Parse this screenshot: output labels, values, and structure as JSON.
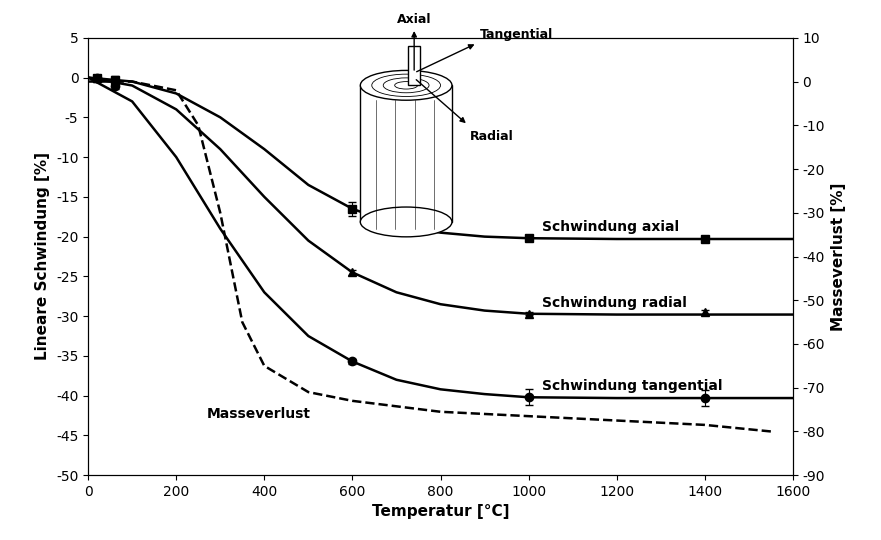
{
  "chart_data": {
    "type": "line",
    "x_label": "Temperatur [°C]",
    "y_label": "Lineare Schwindung [%]",
    "y2_label": "Masseverlust [%]",
    "xlim": [
      0,
      1600
    ],
    "xticks": [
      0,
      200,
      400,
      600,
      800,
      1000,
      1200,
      1400,
      1600
    ],
    "ylim": [
      -50,
      5
    ],
    "yticks": [
      -50,
      -45,
      -40,
      -35,
      -30,
      -25,
      -20,
      -15,
      -10,
      -5,
      0,
      5
    ],
    "y2lim": [
      -90,
      10
    ],
    "y2ticks": [
      -90,
      -80,
      -70,
      -60,
      -50,
      -40,
      -30,
      -20,
      -10,
      0,
      10
    ],
    "grid": false,
    "x": [
      0,
      100,
      200,
      300,
      400,
      500,
      600,
      700,
      800,
      900,
      1000,
      1200,
      1400,
      1600
    ],
    "series": [
      {
        "name": "Schwindung axial",
        "color": "#000000",
        "line_style": "solid",
        "marker": "square",
        "values": [
          0,
          -0.5,
          -2,
          -5,
          -9,
          -13.5,
          -16.5,
          -18.5,
          -19.5,
          -20,
          -20.2,
          -20.3,
          -20.3,
          -20.3
        ],
        "measured": {
          "x": [
            20,
            60,
            600,
            1000,
            1400
          ],
          "values": [
            0,
            -0.3,
            -16.5,
            -20.2,
            -20.3
          ],
          "errors": [
            0.3,
            0.5,
            0.9,
            0.2,
            0.2
          ]
        }
      },
      {
        "name": "Schwindung radial",
        "color": "#000000",
        "line_style": "solid",
        "marker": "triangle",
        "values": [
          0,
          -1,
          -4,
          -9,
          -15,
          -20.5,
          -24.5,
          -27,
          -28.5,
          -29.3,
          -29.7,
          -29.8,
          -29.8,
          -29.8
        ],
        "measured": {
          "x": [
            20,
            60,
            600,
            1000,
            1400
          ],
          "values": [
            0,
            -0.5,
            -24.5,
            -29.7,
            -29.5
          ],
          "errors": [
            0.3,
            0.5,
            0.3,
            0.2,
            0.3
          ]
        }
      },
      {
        "name": "Schwindung tangential",
        "color": "#000000",
        "line_style": "solid",
        "marker": "circle",
        "values": [
          0,
          -3,
          -10,
          -19,
          -27,
          -32.5,
          -35.7,
          -38,
          -39.2,
          -39.8,
          -40.2,
          -40.3,
          -40.3,
          -40.3
        ],
        "measured": {
          "x": [
            20,
            60,
            600,
            1000,
            1400
          ],
          "values": [
            0,
            -1,
            -35.7,
            -40.2,
            -40.3
          ],
          "errors": [
            0.3,
            0.5,
            0.3,
            1.0,
            1.0
          ]
        }
      },
      {
        "name": "Masseverlust",
        "color": "#000000",
        "line_style": "dashed",
        "axis": "y2",
        "x": [
          0,
          100,
          200,
          250,
          300,
          350,
          400,
          500,
          600,
          800,
          1000,
          1200,
          1400,
          1550
        ],
        "values": [
          0,
          0,
          -2,
          -10,
          -30,
          -55,
          -65,
          -71,
          -73,
          -75.5,
          -76.5,
          -77.5,
          -78.5,
          -80
        ]
      }
    ],
    "diagram": {
      "labels": [
        "Axial",
        "Tangential",
        "Radial"
      ]
    }
  }
}
